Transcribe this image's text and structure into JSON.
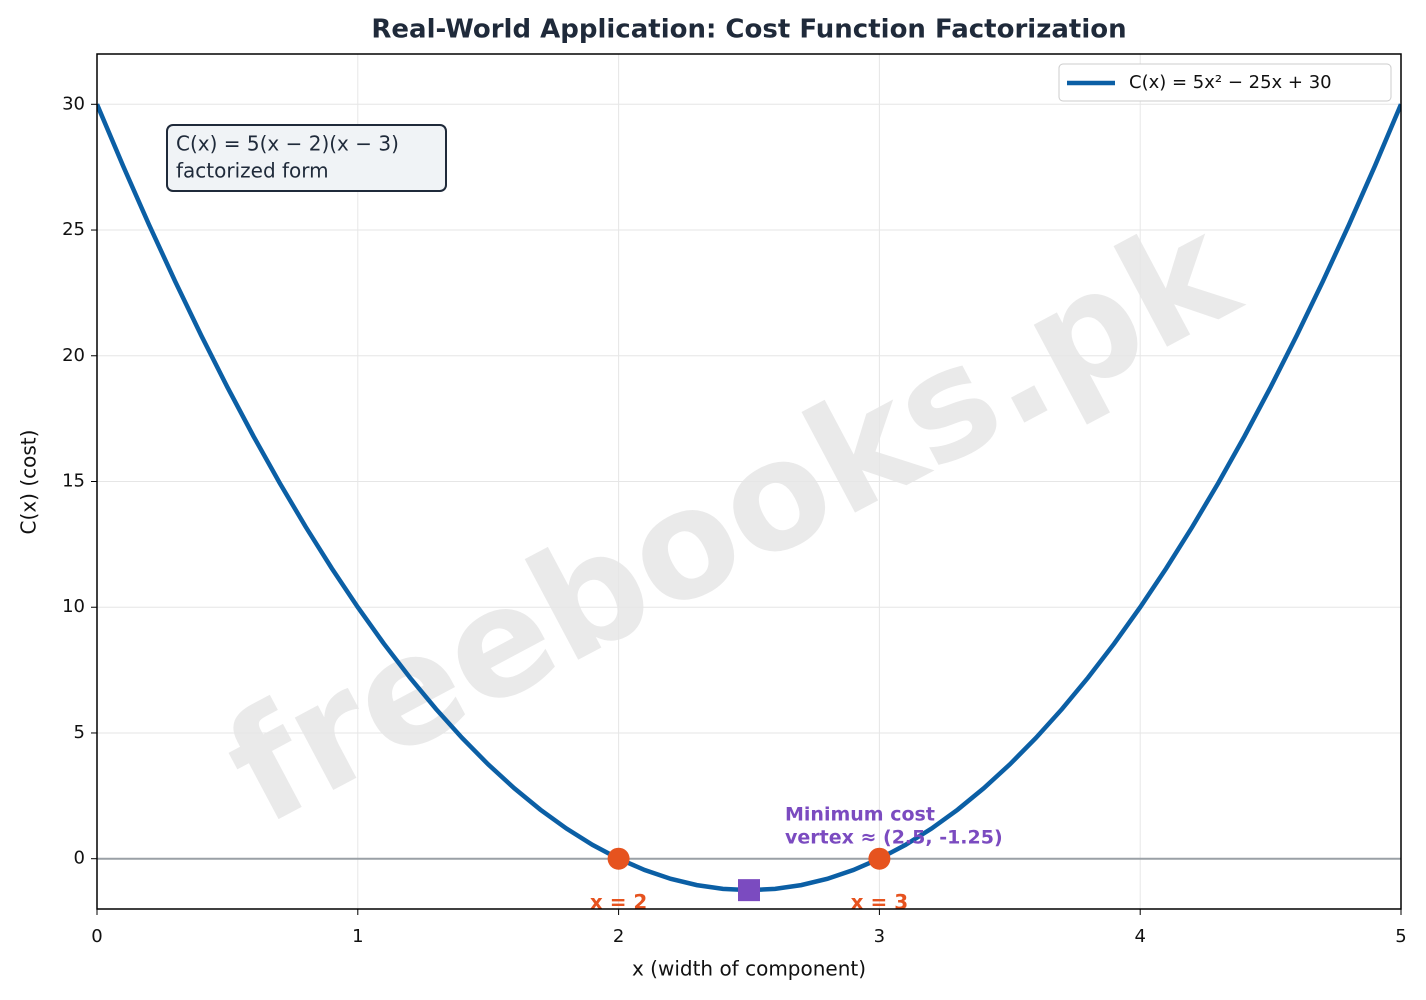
{
  "chart_data": {
    "type": "line",
    "title": "Real-World Application: Cost Function Factorization",
    "x_label": "x (width of component)",
    "y_label": "C(x) (cost)",
    "x": [
      0,
      0.1,
      0.2,
      0.3,
      0.4,
      0.5,
      0.6,
      0.7,
      0.8,
      0.9,
      1,
      1.1,
      1.2,
      1.3,
      1.4,
      1.5,
      1.6,
      1.7,
      1.8,
      1.9,
      2,
      2.1,
      2.2,
      2.3,
      2.4,
      2.5,
      2.6,
      2.7,
      2.8,
      2.9,
      3,
      3.1,
      3.2,
      3.3,
      3.4,
      3.5,
      3.6,
      3.7,
      3.8,
      3.9,
      4,
      4.1,
      4.2,
      4.3,
      4.4,
      4.5,
      4.6,
      4.7,
      4.8,
      4.9,
      5
    ],
    "series": [
      {
        "name": "C(x) = 5x² − 25x + 30",
        "color": "#0b5fa5",
        "values": [
          30,
          27.55,
          25.2,
          22.95,
          20.8,
          18.75,
          16.8,
          14.95,
          13.2,
          11.55,
          10,
          8.55,
          7.2,
          5.95,
          4.8,
          3.75,
          2.8,
          1.95,
          1.2,
          0.55,
          0,
          -0.45,
          -0.8,
          -1.05,
          -1.2,
          -1.25,
          -1.2,
          -1.05,
          -0.8,
          -0.45,
          0,
          0.55,
          1.2,
          1.95,
          2.8,
          3.75,
          4.8,
          5.95,
          7.2,
          8.55,
          10,
          11.55,
          13.2,
          14.95,
          16.8,
          18.75,
          20.8,
          22.95,
          25.2,
          27.55,
          30
        ]
      }
    ],
    "markers": [
      {
        "shape": "circle",
        "color": "#e6531f",
        "x": [
          2,
          3
        ],
        "values": [
          0,
          0
        ],
        "labels": [
          "x = 2",
          "x = 3"
        ]
      },
      {
        "shape": "square",
        "color": "#7b4bc0",
        "x": [
          2.5
        ],
        "values": [
          -1.25
        ],
        "labels": [
          "Minimum cost",
          "vertex ≈ (2.5, -1.25)"
        ]
      }
    ],
    "note": [
      "C(x) = 5(x − 2)(x − 3)",
      "factorized form"
    ],
    "watermark": "freebooks.pk",
    "baseline": 0,
    "xlim": [
      0,
      5
    ],
    "xticks": [
      0,
      1,
      2,
      3,
      4,
      5
    ],
    "ylim": [
      -2,
      32
    ],
    "yticks": [
      0,
      5,
      10,
      15,
      20,
      25,
      30
    ],
    "grid": true,
    "legend": "upper right"
  }
}
